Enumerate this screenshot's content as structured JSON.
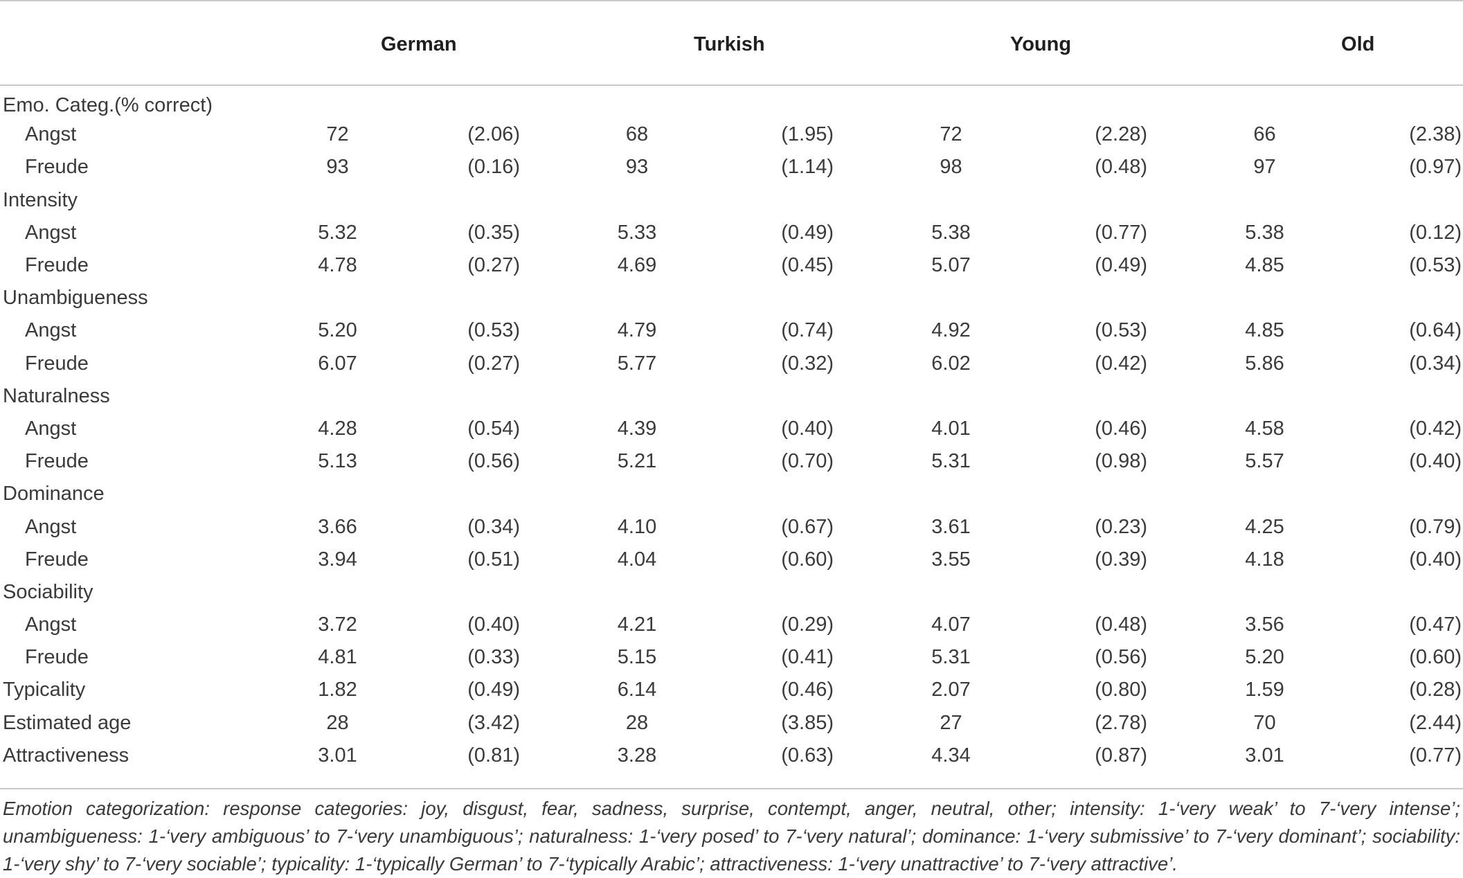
{
  "table": {
    "columns": [
      "German",
      "Turkish",
      "Young",
      "Old"
    ],
    "rows": [
      {
        "label": "Emo. Categ.(% correct)",
        "kind": "section",
        "cells": []
      },
      {
        "label": "Angst",
        "kind": "sub",
        "cells": [
          [
            "72",
            "(2.06)"
          ],
          [
            "68",
            "(1.95)"
          ],
          [
            "72",
            "(2.28)"
          ],
          [
            "66",
            "(2.38)"
          ]
        ]
      },
      {
        "label": "Freude",
        "kind": "sub",
        "cells": [
          [
            "93",
            "(0.16)"
          ],
          [
            "93",
            "(1.14)"
          ],
          [
            "98",
            "(0.48)"
          ],
          [
            "97",
            "(0.97)"
          ]
        ]
      },
      {
        "label": "Intensity",
        "kind": "section",
        "cells": []
      },
      {
        "label": "Angst",
        "kind": "sub",
        "cells": [
          [
            "5.32",
            "(0.35)"
          ],
          [
            "5.33",
            "(0.49)"
          ],
          [
            "5.38",
            "(0.77)"
          ],
          [
            "5.38",
            "(0.12)"
          ]
        ]
      },
      {
        "label": "Freude",
        "kind": "sub",
        "cells": [
          [
            "4.78",
            "(0.27)"
          ],
          [
            "4.69",
            "(0.45)"
          ],
          [
            "5.07",
            "(0.49)"
          ],
          [
            "4.85",
            "(0.53)"
          ]
        ]
      },
      {
        "label": "Unambigueness",
        "kind": "section",
        "cells": []
      },
      {
        "label": "Angst",
        "kind": "sub",
        "cells": [
          [
            "5.20",
            "(0.53)"
          ],
          [
            "4.79",
            "(0.74)"
          ],
          [
            "4.92",
            "(0.53)"
          ],
          [
            "4.85",
            "(0.64)"
          ]
        ]
      },
      {
        "label": "Freude",
        "kind": "sub",
        "cells": [
          [
            "6.07",
            "(0.27)"
          ],
          [
            "5.77",
            "(0.32)"
          ],
          [
            "6.02",
            "(0.42)"
          ],
          [
            "5.86",
            "(0.34)"
          ]
        ]
      },
      {
        "label": "Naturalness",
        "kind": "section",
        "cells": []
      },
      {
        "label": "Angst",
        "kind": "sub",
        "cells": [
          [
            "4.28",
            "(0.54)"
          ],
          [
            "4.39",
            "(0.40)"
          ],
          [
            "4.01",
            "(0.46)"
          ],
          [
            "4.58",
            "(0.42)"
          ]
        ]
      },
      {
        "label": "Freude",
        "kind": "sub",
        "cells": [
          [
            "5.13",
            "(0.56)"
          ],
          [
            "5.21",
            "(0.70)"
          ],
          [
            "5.31",
            "(0.98)"
          ],
          [
            "5.57",
            "(0.40)"
          ]
        ]
      },
      {
        "label": "Dominance",
        "kind": "section",
        "cells": []
      },
      {
        "label": "Angst",
        "kind": "sub",
        "cells": [
          [
            "3.66",
            "(0.34)"
          ],
          [
            "4.10",
            "(0.67)"
          ],
          [
            "3.61",
            "(0.23)"
          ],
          [
            "4.25",
            "(0.79)"
          ]
        ]
      },
      {
        "label": "Freude",
        "kind": "sub",
        "cells": [
          [
            "3.94",
            "(0.51)"
          ],
          [
            "4.04",
            "(0.60)"
          ],
          [
            "3.55",
            "(0.39)"
          ],
          [
            "4.18",
            "(0.40)"
          ]
        ]
      },
      {
        "label": "Sociability",
        "kind": "section",
        "cells": []
      },
      {
        "label": "Angst",
        "kind": "sub",
        "cells": [
          [
            "3.72",
            "(0.40)"
          ],
          [
            "4.21",
            "(0.29)"
          ],
          [
            "4.07",
            "(0.48)"
          ],
          [
            "3.56",
            "(0.47)"
          ]
        ]
      },
      {
        "label": "Freude",
        "kind": "sub",
        "cells": [
          [
            "4.81",
            "(0.33)"
          ],
          [
            "5.15",
            "(0.41)"
          ],
          [
            "5.31",
            "(0.56)"
          ],
          [
            "5.20",
            "(0.60)"
          ]
        ]
      },
      {
        "label": "Typicality",
        "kind": "main",
        "cells": [
          [
            "1.82",
            "(0.49)"
          ],
          [
            "6.14",
            "(0.46)"
          ],
          [
            "2.07",
            "(0.80)"
          ],
          [
            "1.59",
            "(0.28)"
          ]
        ]
      },
      {
        "label": "Estimated age",
        "kind": "main",
        "cells": [
          [
            "28",
            "(3.42)"
          ],
          [
            "28",
            "(3.85)"
          ],
          [
            "27",
            "(2.78)"
          ],
          [
            "70",
            "(2.44)"
          ]
        ]
      },
      {
        "label": "Attractiveness",
        "kind": "main",
        "cells": [
          [
            "3.01",
            "(0.81)"
          ],
          [
            "3.28",
            "(0.63)"
          ],
          [
            "4.34",
            "(0.87)"
          ],
          [
            "3.01",
            "(0.77)"
          ]
        ]
      }
    ]
  },
  "footnote": "Emotion categorization: response categories: joy, disgust, fear, sadness, surprise, contempt, anger, neutral, other; intensity: 1-‘very weak’ to 7-‘very intense’; unambigueness: 1-‘very ambiguous’ to 7-‘very unambiguous’; naturalness: 1-‘very posed’ to 7-‘very natural’; dominance: 1-‘very submissive’ to 7-‘very dominant’; sociability: 1-‘very shy’ to 7-‘very sociable’; typicality: 1-‘typically German’ to 7-‘typically Arabic’; attractiveness: 1-‘very unattractive’ to 7-‘very attractive’."
}
